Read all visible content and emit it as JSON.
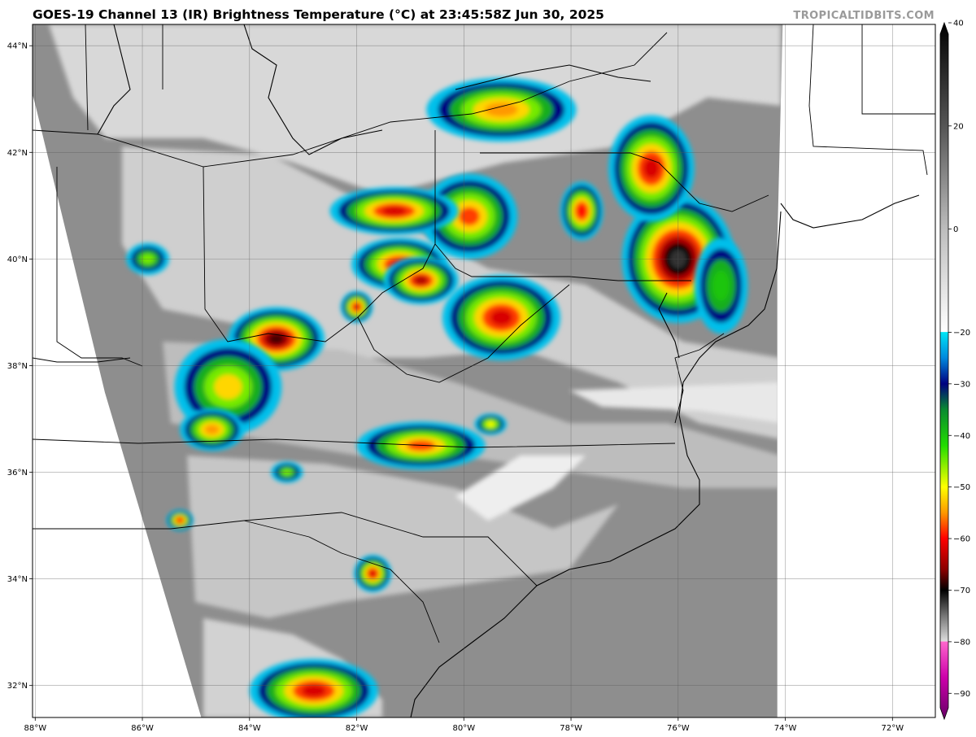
{
  "title": "GOES-19 Channel 13 (IR) Brightness Temperature (°C) at 23:45:58Z Jun 30, 2025",
  "credit": "TROPICALTIDBITS.COM",
  "map": {
    "projection": "lat-lon",
    "lon_range": [
      -88.05,
      -71.2
    ],
    "lat_range": [
      31.4,
      44.4
    ],
    "lon_ticks": [
      {
        "value": -88,
        "label": "88°W"
      },
      {
        "value": -86,
        "label": "86°W"
      },
      {
        "value": -84,
        "label": "84°W"
      },
      {
        "value": -82,
        "label": "82°W"
      },
      {
        "value": -80,
        "label": "80°W"
      },
      {
        "value": -78,
        "label": "78°W"
      },
      {
        "value": -76,
        "label": "76°W"
      },
      {
        "value": -74,
        "label": "74°W"
      },
      {
        "value": -72,
        "label": "72°W"
      }
    ],
    "lat_ticks": [
      {
        "value": 44,
        "label": "44°N"
      },
      {
        "value": 42,
        "label": "42°N"
      },
      {
        "value": 40,
        "label": "40°N"
      },
      {
        "value": 38,
        "label": "38°N"
      },
      {
        "value": 36,
        "label": "36°N"
      },
      {
        "value": 34,
        "label": "34°N"
      },
      {
        "value": 32,
        "label": "32°N"
      }
    ],
    "grid": true,
    "satellite_swath": [
      [
        -83.2,
        44.4
      ],
      [
        -74.05,
        44.4
      ],
      [
        -74.15,
        40.3
      ],
      [
        -74.15,
        31.4
      ],
      [
        -84.9,
        31.4
      ],
      [
        -86.7,
        37.5
      ],
      [
        -88.0,
        42.9
      ],
      [
        -88.4,
        44.4
      ]
    ],
    "convective_cells": [
      {
        "lon": -76.0,
        "lat": 40.0,
        "rx": 1.05,
        "ry": 1.2,
        "min_temp": -72
      },
      {
        "lon": -76.5,
        "lat": 41.7,
        "rx": 0.8,
        "ry": 1.0,
        "min_temp": -62
      },
      {
        "lon": -77.8,
        "lat": 40.9,
        "rx": 0.4,
        "ry": 0.55,
        "min_temp": -60
      },
      {
        "lon": -79.3,
        "lat": 42.8,
        "rx": 1.4,
        "ry": 0.6,
        "min_temp": -55
      },
      {
        "lon": -79.9,
        "lat": 40.8,
        "rx": 0.9,
        "ry": 0.8,
        "min_temp": -58
      },
      {
        "lon": -81.3,
        "lat": 40.9,
        "rx": 1.2,
        "ry": 0.45,
        "min_temp": -62
      },
      {
        "lon": -81.2,
        "lat": 39.9,
        "rx": 0.9,
        "ry": 0.5,
        "min_temp": -60
      },
      {
        "lon": -80.8,
        "lat": 39.6,
        "rx": 0.7,
        "ry": 0.45,
        "min_temp": -64
      },
      {
        "lon": -79.3,
        "lat": 38.9,
        "rx": 1.1,
        "ry": 0.8,
        "min_temp": -62
      },
      {
        "lon": -82.0,
        "lat": 39.1,
        "rx": 0.3,
        "ry": 0.3,
        "min_temp": -62
      },
      {
        "lon": -83.5,
        "lat": 38.5,
        "rx": 0.9,
        "ry": 0.6,
        "min_temp": -68
      },
      {
        "lon": -84.4,
        "lat": 37.6,
        "rx": 1.0,
        "ry": 0.9,
        "min_temp": -52
      },
      {
        "lon": -84.7,
        "lat": 36.8,
        "rx": 0.6,
        "ry": 0.4,
        "min_temp": -55
      },
      {
        "lon": -80.8,
        "lat": 36.5,
        "rx": 1.2,
        "ry": 0.45,
        "min_temp": -58
      },
      {
        "lon": -79.5,
        "lat": 36.9,
        "rx": 0.3,
        "ry": 0.2,
        "min_temp": -50
      },
      {
        "lon": -81.7,
        "lat": 34.1,
        "rx": 0.35,
        "ry": 0.35,
        "min_temp": -62
      },
      {
        "lon": -82.8,
        "lat": 31.9,
        "rx": 1.2,
        "ry": 0.6,
        "min_temp": -62
      },
      {
        "lon": -85.3,
        "lat": 35.1,
        "rx": 0.25,
        "ry": 0.2,
        "min_temp": -60
      },
      {
        "lon": -85.9,
        "lat": 40.0,
        "rx": 0.4,
        "ry": 0.3,
        "min_temp": -45
      },
      {
        "lon": -83.3,
        "lat": 36.0,
        "rx": 0.3,
        "ry": 0.2,
        "min_temp": -45
      },
      {
        "lon": -75.2,
        "lat": 39.5,
        "rx": 0.5,
        "ry": 0.9,
        "min_temp": -40
      }
    ]
  },
  "colorbar": {
    "min": -95,
    "max": 40,
    "ticks": [
      {
        "value": 40,
        "label": "40"
      },
      {
        "value": 20,
        "label": "20"
      },
      {
        "value": 0,
        "label": "0"
      },
      {
        "value": -20,
        "label": "−20"
      },
      {
        "value": -30,
        "label": "−30"
      },
      {
        "value": -40,
        "label": "−40"
      },
      {
        "value": -50,
        "label": "−50"
      },
      {
        "value": -60,
        "label": "−60"
      },
      {
        "value": -70,
        "label": "−70"
      },
      {
        "value": -80,
        "label": "−80"
      },
      {
        "value": -90,
        "label": "−90"
      }
    ],
    "stops": [
      {
        "value": 40,
        "color": "#000000"
      },
      {
        "value": 20,
        "color": "#555555"
      },
      {
        "value": 0,
        "color": "#bdbdbd"
      },
      {
        "value": -19.9,
        "color": "#ffffff"
      },
      {
        "value": -20,
        "color": "#00e5f5"
      },
      {
        "value": -25,
        "color": "#0088dd"
      },
      {
        "value": -30,
        "color": "#000080"
      },
      {
        "value": -35,
        "color": "#0a8a30"
      },
      {
        "value": -42,
        "color": "#22dd00"
      },
      {
        "value": -50,
        "color": "#ffff00"
      },
      {
        "value": -55,
        "color": "#ff9900"
      },
      {
        "value": -60,
        "color": "#ff0000"
      },
      {
        "value": -66,
        "color": "#8a0000"
      },
      {
        "value": -70,
        "color": "#000000"
      },
      {
        "value": -75,
        "color": "#777777"
      },
      {
        "value": -79.9,
        "color": "#dddddd"
      },
      {
        "value": -80,
        "color": "#ff66cc"
      },
      {
        "value": -87,
        "color": "#cc00aa"
      },
      {
        "value": -95,
        "color": "#660066"
      }
    ]
  }
}
